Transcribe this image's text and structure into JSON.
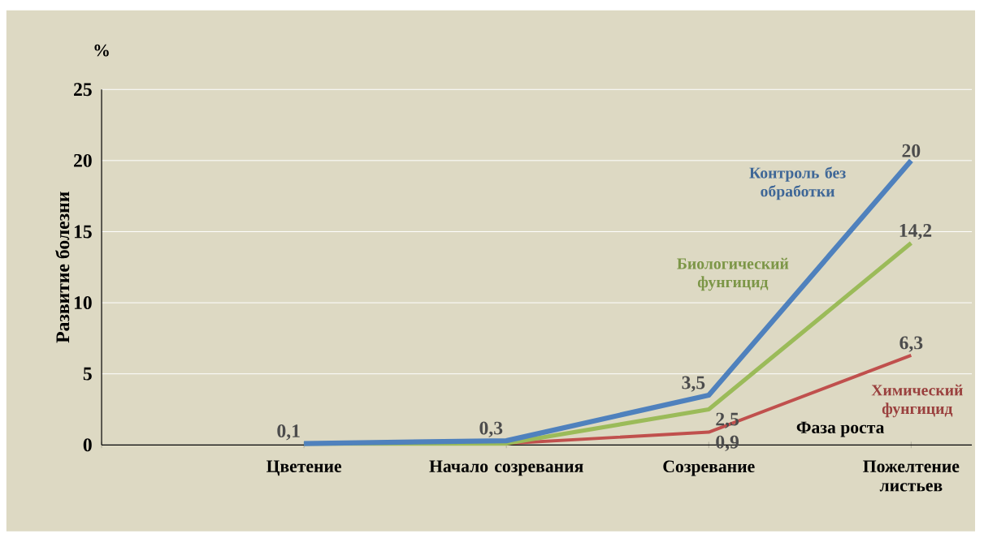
{
  "chart_data": {
    "type": "line",
    "ylabel": "Развитие болезни",
    "xlabel": "Фаза роста",
    "annotations": [
      "%"
    ],
    "categories": [
      null,
      "Цветение",
      "Начало созревания",
      "Созревание",
      "Пожелтение листьев"
    ],
    "ylim": [
      0,
      25
    ],
    "yticks": [
      0,
      5,
      10,
      15,
      20,
      25
    ],
    "grid": "y",
    "series": [
      {
        "name": "Контроль без обработки",
        "color": "#4f81bd",
        "values": [
          null,
          0.1,
          0.3,
          3.5,
          20
        ],
        "value_labels": [
          null,
          "0,1",
          "0,3",
          "3,5",
          "20"
        ]
      },
      {
        "name": "Биологический фунгицид",
        "color": "#9bbb59",
        "values": [
          null,
          0.1,
          0.1,
          2.5,
          14.2
        ],
        "value_labels": [
          null,
          null,
          null,
          "2,5",
          "14,2"
        ]
      },
      {
        "name": "Химический фунгицид",
        "color": "#c0504d",
        "values": [
          null,
          0.1,
          0.1,
          0.9,
          6.3
        ],
        "value_labels": [
          null,
          null,
          null,
          "0,9",
          "6,3"
        ]
      }
    ]
  }
}
